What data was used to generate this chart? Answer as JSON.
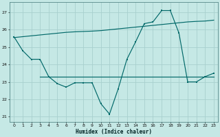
{
  "background_color": "#c5e8e5",
  "grid_color": "#a8d0ce",
  "line_color": "#006868",
  "xlabel": "Humidex (Indice chaleur)",
  "xlim": [
    -0.5,
    23.5
  ],
  "ylim": [
    20.7,
    27.6
  ],
  "yticks": [
    21,
    22,
    23,
    24,
    25,
    26,
    27
  ],
  "xticks": [
    0,
    1,
    2,
    3,
    4,
    5,
    6,
    7,
    8,
    9,
    10,
    11,
    12,
    13,
    14,
    15,
    16,
    17,
    18,
    19,
    20,
    21,
    22,
    23
  ],
  "line1_x": [
    0,
    1,
    2,
    3,
    4,
    5,
    6,
    7,
    8,
    9,
    10,
    11,
    12,
    13,
    14,
    15,
    16,
    17,
    18,
    19,
    20,
    21,
    22,
    23
  ],
  "line1_y": [
    25.6,
    24.8,
    24.3,
    24.3,
    23.3,
    22.9,
    22.7,
    22.95,
    22.95,
    22.95,
    21.75,
    21.15,
    22.6,
    24.3,
    25.3,
    26.35,
    26.45,
    27.1,
    27.1,
    25.8,
    23.0,
    23.0,
    23.3,
    23.5
  ],
  "line2_x": [
    0,
    1,
    2,
    3,
    4,
    5,
    6,
    7,
    8,
    9,
    10,
    11,
    12,
    13,
    14,
    15,
    16,
    17,
    18,
    19,
    20,
    21,
    22,
    23
  ],
  "line2_y": [
    25.55,
    25.6,
    25.65,
    25.7,
    25.75,
    25.8,
    25.85,
    25.88,
    25.9,
    25.92,
    25.95,
    26.0,
    26.05,
    26.1,
    26.15,
    26.2,
    26.25,
    26.3,
    26.35,
    26.4,
    26.45,
    26.48,
    26.5,
    26.55
  ],
  "line3_x": [
    3,
    23
  ],
  "line3_y": [
    23.3,
    23.3
  ]
}
